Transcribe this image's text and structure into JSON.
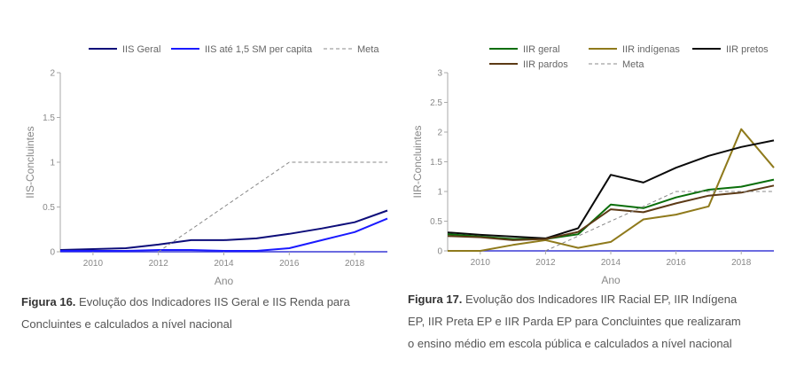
{
  "chart_data": [
    {
      "type": "line",
      "xlabel": "Ano",
      "ylabel": "IIS-Concluintes",
      "xlim": [
        2009,
        2019
      ],
      "ylim": [
        0,
        2
      ],
      "xticks": [
        "2010",
        "2012",
        "2014",
        "2016",
        "2018"
      ],
      "yticks": [
        "0",
        "0.5",
        "1",
        "1.5",
        "2"
      ],
      "legend_position": "top",
      "x": [
        2009,
        2010,
        2011,
        2012,
        2013,
        2014,
        2015,
        2016,
        2017,
        2018,
        2019
      ],
      "series": [
        {
          "name": "IIS Geral",
          "color": "#0d0d7a",
          "dash": "",
          "values": [
            0.02,
            0.03,
            0.04,
            0.08,
            0.13,
            0.13,
            0.15,
            0.2,
            0.26,
            0.33,
            0.46
          ]
        },
        {
          "name": "IIS até 1,5 SM per capita",
          "color": "#1a1aff",
          "dash": "",
          "values": [
            0.01,
            0.01,
            0.01,
            0.02,
            0.02,
            0.01,
            0.01,
            0.04,
            0.13,
            0.22,
            0.37
          ]
        },
        {
          "name": "Meta",
          "color": "#888888",
          "dash": "4,3",
          "values": [
            null,
            null,
            null,
            0.0,
            0.25,
            0.5,
            0.75,
            1.0,
            1.0,
            1.0,
            1.0
          ]
        }
      ]
    },
    {
      "type": "line",
      "xlabel": "Ano",
      "ylabel": "IIR-Concluintes",
      "xlim": [
        2009,
        2019
      ],
      "ylim": [
        0,
        3
      ],
      "xticks": [
        "2010",
        "2012",
        "2014",
        "2016",
        "2018"
      ],
      "yticks": [
        "0",
        "0.5",
        "1",
        "1.5",
        "2",
        "2.5",
        "3"
      ],
      "legend_position": "top",
      "x": [
        2009,
        2010,
        2011,
        2012,
        2013,
        2014,
        2015,
        2016,
        2017,
        2018,
        2019
      ],
      "series": [
        {
          "name": "IIR geral",
          "color": "#0a6e0a",
          "dash": "",
          "values": [
            0.28,
            0.24,
            0.2,
            0.2,
            0.28,
            0.78,
            0.72,
            0.9,
            1.03,
            1.08,
            1.2
          ]
        },
        {
          "name": "IIR indígenas",
          "color": "#8f7a1c",
          "dash": "",
          "values": [
            0.0,
            0.0,
            0.1,
            0.18,
            0.05,
            0.15,
            0.53,
            0.61,
            0.75,
            2.05,
            1.4
          ]
        },
        {
          "name": "IIR pretos",
          "color": "#0a0a0a",
          "dash": "",
          "values": [
            0.31,
            0.27,
            0.24,
            0.21,
            0.38,
            1.28,
            1.15,
            1.4,
            1.6,
            1.75,
            1.86
          ]
        },
        {
          "name": "IIR pardos",
          "color": "#5c3a16",
          "dash": "",
          "values": [
            0.25,
            0.23,
            0.18,
            0.2,
            0.32,
            0.7,
            0.65,
            0.8,
            0.93,
            0.98,
            1.1
          ]
        },
        {
          "name": "Meta",
          "color": "#888888",
          "dash": "4,3",
          "values": [
            null,
            null,
            null,
            0.0,
            0.25,
            0.5,
            0.75,
            1.0,
            1.0,
            1.0,
            1.0
          ]
        }
      ]
    }
  ],
  "captions": {
    "fig16_label": "Figura 16.",
    "fig16_line1": " Evolução dos Indicadores IIS Geral e IIS Renda para",
    "fig16_line2": "Concluintes e calculados a nível nacional",
    "fig17_label": "Figura 17.",
    "fig17_line1": " Evolução dos Indicadores IIR Racial EP, IIR Indígena",
    "fig17_line2": "EP, IIR Preta EP e IIR Parda EP para Concluintes que realizaram",
    "fig17_line3": "o ensino médio em escola pública e calculados a nível nacional"
  }
}
